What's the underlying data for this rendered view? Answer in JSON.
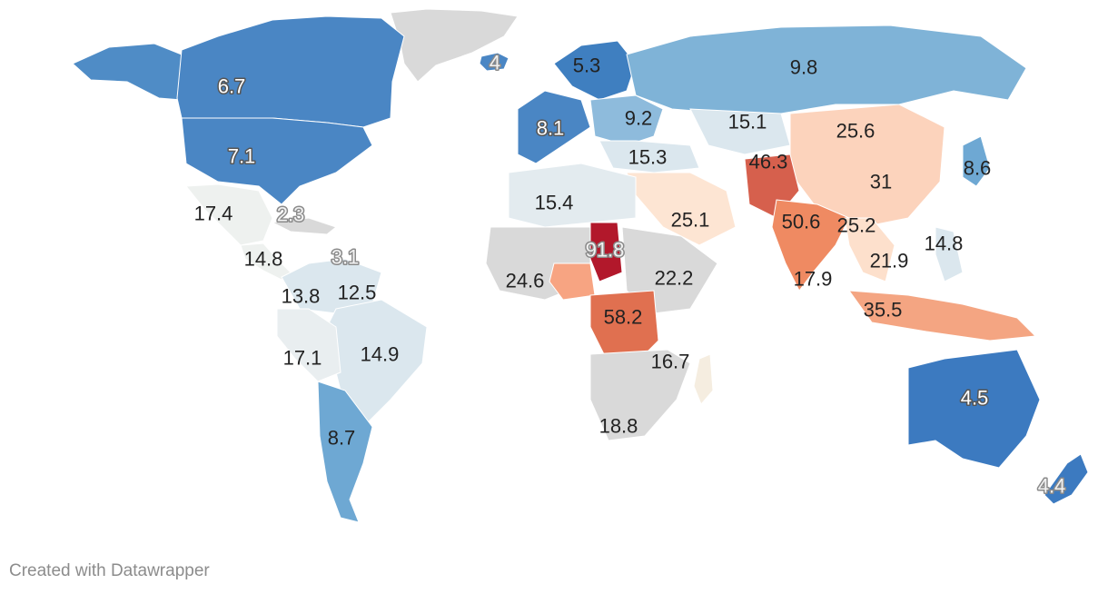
{
  "credit": "Created with Datawrapper",
  "colors": {
    "no_data": "#d9d9d9",
    "low": "#3f7fc0",
    "mid": "#dbe7ee",
    "high": "#b2182b"
  },
  "chart_data": {
    "type": "choropleth",
    "title": "",
    "regions": [
      {
        "key": "canada",
        "value": 6.7
      },
      {
        "key": "united-states",
        "value": 7.1
      },
      {
        "key": "mexico",
        "value": 17.4
      },
      {
        "key": "cuba",
        "value": 2.3
      },
      {
        "key": "central-america",
        "value": 14.8
      },
      {
        "key": "caribbean",
        "value": 3.1
      },
      {
        "key": "ecuador",
        "value": 13.8
      },
      {
        "key": "colombia",
        "value": 12.5
      },
      {
        "key": "peru",
        "value": 17.1
      },
      {
        "key": "brazil",
        "value": 14.9
      },
      {
        "key": "argentina",
        "value": 8.7
      },
      {
        "key": "iceland",
        "value": 4
      },
      {
        "key": "sweden",
        "value": 5.3
      },
      {
        "key": "western-europe",
        "value": 8.1
      },
      {
        "key": "central-europe",
        "value": 9.2
      },
      {
        "key": "russia",
        "value": 9.8
      },
      {
        "key": "turkey",
        "value": 15.3
      },
      {
        "key": "kazakhstan",
        "value": 15.1
      },
      {
        "key": "mongolia",
        "value": 25.6
      },
      {
        "key": "afghanistan",
        "value": 46.3
      },
      {
        "key": "china",
        "value": 31
      },
      {
        "key": "japan",
        "value": 8.6
      },
      {
        "key": "algeria",
        "value": 15.4
      },
      {
        "key": "chad",
        "value": 91.8
      },
      {
        "key": "saudi-arabia",
        "value": 25.1
      },
      {
        "key": "india",
        "value": 50.6
      },
      {
        "key": "myanmar",
        "value": 25.2
      },
      {
        "key": "philippines",
        "value": 14.8
      },
      {
        "key": "thailand",
        "value": 21.9
      },
      {
        "key": "sri-lanka",
        "value": 17.9
      },
      {
        "key": "nigeria",
        "value": 24.6
      },
      {
        "key": "ethiopia",
        "value": 22.2
      },
      {
        "key": "dr-congo",
        "value": 58.2
      },
      {
        "key": "tanzania",
        "value": 16.7
      },
      {
        "key": "indonesia",
        "value": 35.5
      },
      {
        "key": "south-africa",
        "value": 18.8
      },
      {
        "key": "australia",
        "value": 4.5
      },
      {
        "key": "new-zealand",
        "value": 4.4
      }
    ]
  }
}
